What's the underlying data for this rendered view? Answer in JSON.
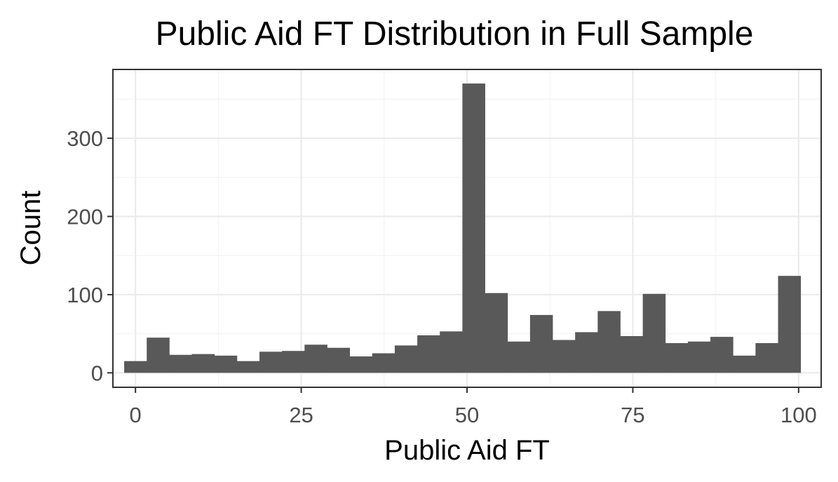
{
  "chart_data": {
    "type": "bar",
    "title": "Public Aid FT Distribution in Full Sample",
    "xlabel": "Public Aid FT",
    "ylabel": "Count",
    "xlim": [
      -3.4,
      103.4
    ],
    "ylim": [
      -18.5,
      388
    ],
    "x_ticks": [
      0,
      25,
      50,
      75,
      100
    ],
    "y_ticks": [
      0,
      100,
      200,
      300
    ],
    "grid": true,
    "legend": "none",
    "bin_width": 3.4,
    "x": [
      0,
      3.4,
      6.8,
      10.2,
      13.6,
      17,
      20.4,
      23.8,
      27.2,
      30.6,
      34,
      37.4,
      40.8,
      44.2,
      47.6,
      51,
      54.4,
      57.8,
      61.2,
      64.6,
      68,
      71.4,
      74.8,
      78.2,
      81.6,
      85,
      88.4,
      91.8,
      95.2,
      98.6
    ],
    "values": [
      15,
      45,
      23,
      24,
      22,
      15,
      27,
      28,
      36,
      32,
      21,
      25,
      35,
      48,
      53,
      370,
      102,
      40,
      74,
      42,
      52,
      79,
      47,
      101,
      38,
      40,
      46,
      22,
      38,
      124
    ],
    "colors": {
      "bar": "#595959",
      "panel_border": "#333333",
      "grid": "#ebebeb",
      "tick_label": "#4d4d4d"
    }
  }
}
